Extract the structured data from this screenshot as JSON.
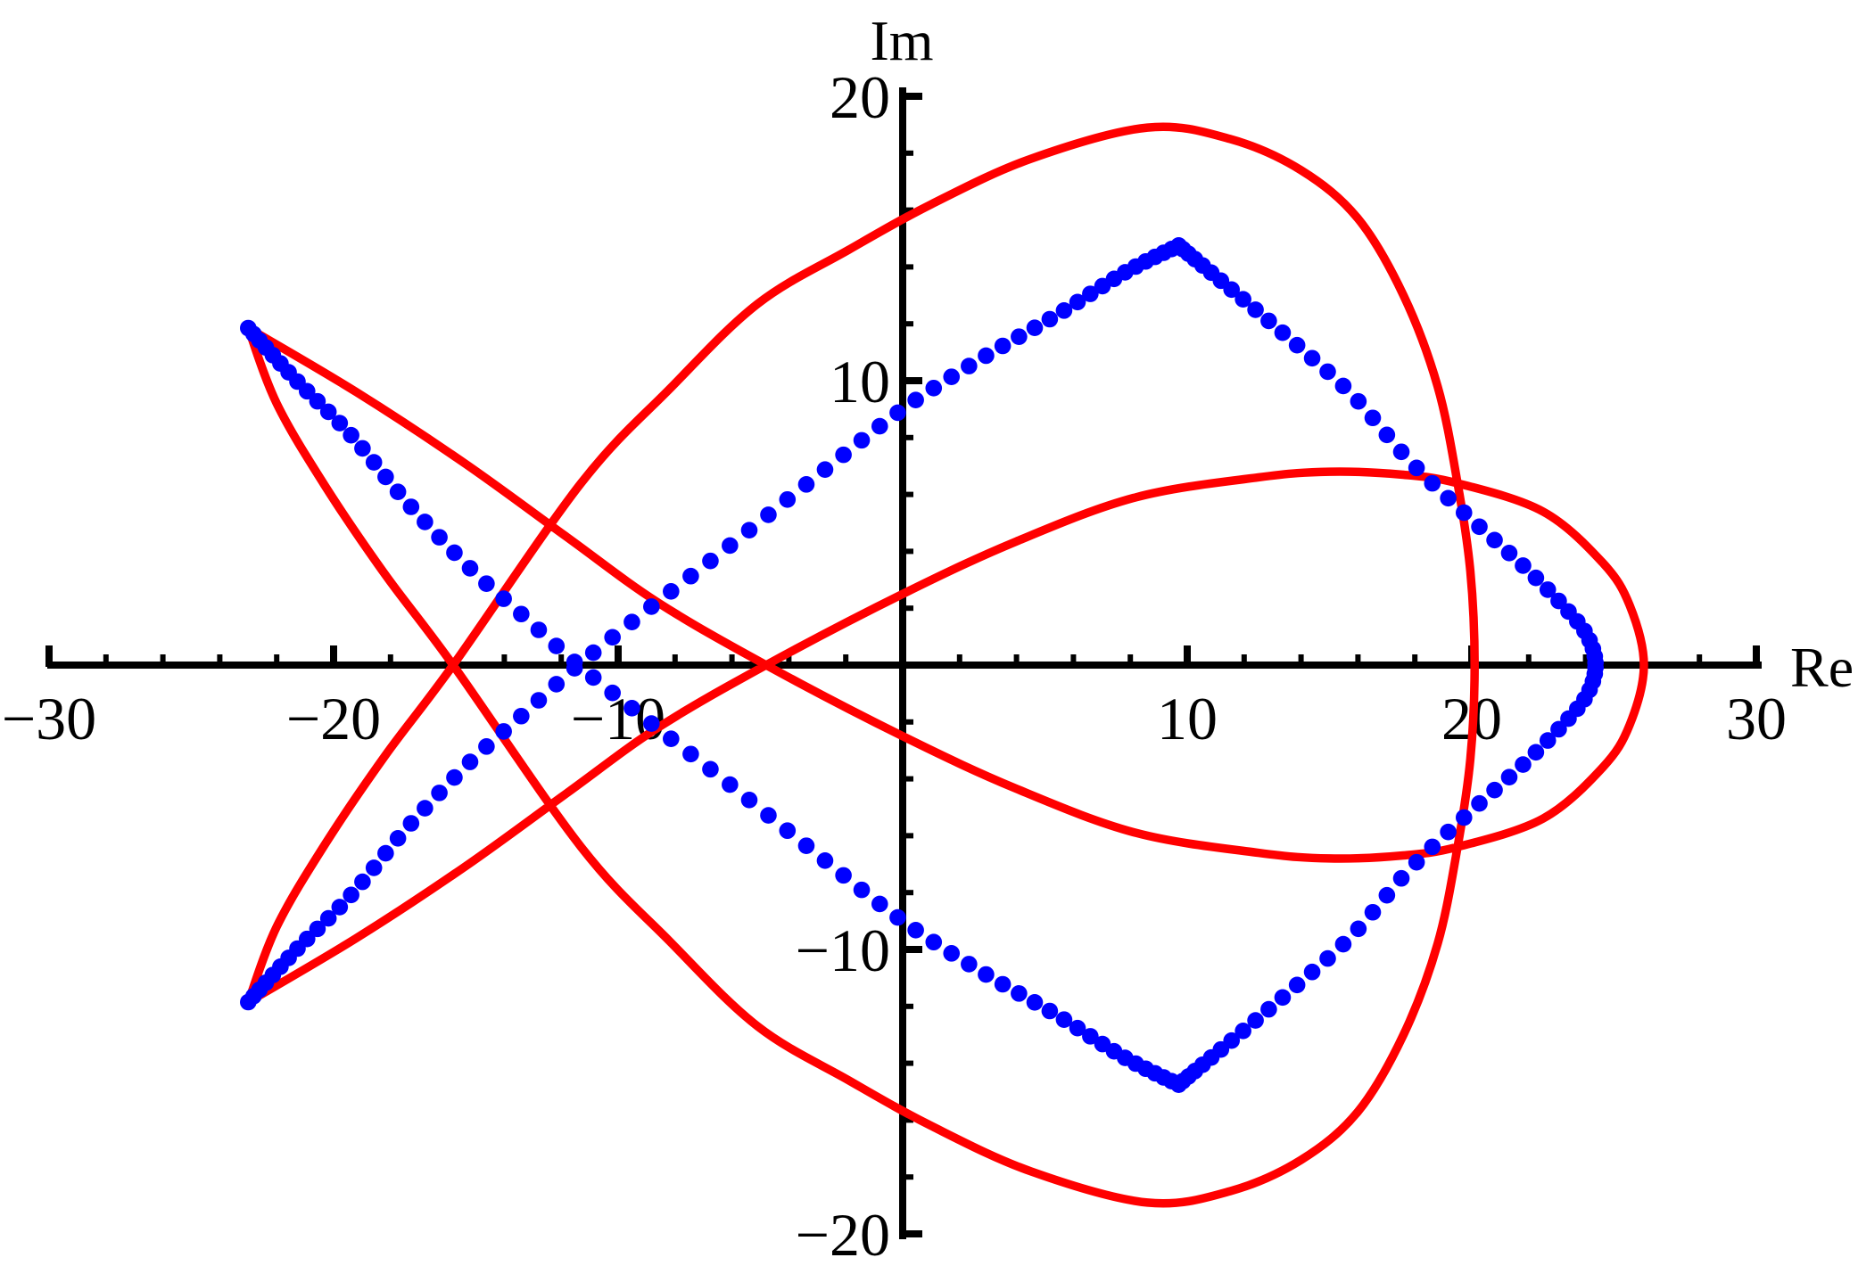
{
  "figure": {
    "background": "#ffffff",
    "description": "Complex-plane plot: red symbol curve (closed self-intersecting 'fish' curve) and blue eigenvalue dots forming arcs"
  },
  "chart_data": {
    "type": "scatter",
    "title": "",
    "xlabel": "Re",
    "ylabel": "Im",
    "xlim": [
      -30,
      30
    ],
    "ylim": [
      -20,
      20
    ],
    "grid": false,
    "legend": null,
    "axes": {
      "x": {
        "label": "Re",
        "range": [
          -30,
          30
        ],
        "minor_step": 2,
        "major_ticks": [
          {
            "value": -30,
            "label": "−30"
          },
          {
            "value": -20,
            "label": "−20"
          },
          {
            "value": -10,
            "label": "−10"
          },
          {
            "value": 10,
            "label": "10"
          },
          {
            "value": 20,
            "label": "20"
          },
          {
            "value": 30,
            "label": "30"
          }
        ]
      },
      "y": {
        "label": "Im",
        "range": [
          -20,
          20
        ],
        "minor_step": 2,
        "major_ticks": [
          {
            "value": 20,
            "label": "20"
          },
          {
            "value": 10,
            "label": "10"
          },
          {
            "value": -10,
            "label": "−10"
          },
          {
            "value": -20,
            "label": "−20"
          }
        ]
      }
    },
    "series": [
      {
        "name": "symbol-curve",
        "kind": "closed-curve",
        "color": "#ff0000",
        "stroke_width": 9.5,
        "sharp_indices": [
          16,
          54
        ],
        "points": [
          [
            26.05,
            0
          ],
          [
            25.55,
            2.1
          ],
          [
            24.6,
            3.6
          ],
          [
            22.5,
            5.4
          ],
          [
            19.47,
            6.4
          ],
          [
            17.5,
            6.7
          ],
          [
            15.0,
            6.8
          ],
          [
            12.5,
            6.6
          ],
          [
            8.2,
            5.9
          ],
          [
            4.0,
            4.35
          ],
          [
            0.0,
            2.5
          ],
          [
            -4.8,
            0
          ],
          [
            -8.6,
            -2.2
          ],
          [
            -11.8,
            -4.5
          ],
          [
            -15.4,
            -7.1
          ],
          [
            -19.2,
            -9.6
          ],
          [
            -23.0,
            -11.85
          ],
          [
            -22.0,
            -9.2
          ],
          [
            -20.3,
            -6.3
          ],
          [
            -18.2,
            -3.2
          ],
          [
            -15.8,
            0
          ],
          [
            -11.3,
            6.4
          ],
          [
            -8.2,
            9.7
          ],
          [
            -5.1,
            12.7
          ],
          [
            -1.9,
            14.6
          ],
          [
            1.0,
            16.2
          ],
          [
            4.5,
            17.8
          ],
          [
            8.6,
            18.9
          ],
          [
            11.5,
            18.5
          ],
          [
            14.0,
            17.4
          ],
          [
            16.0,
            15.7
          ],
          [
            17.6,
            13.0
          ],
          [
            18.8,
            9.8
          ],
          [
            19.5,
            6.4
          ],
          [
            19.95,
            3.3
          ],
          [
            20.1,
            0
          ],
          [
            19.95,
            -3.3
          ],
          [
            19.5,
            -6.4
          ],
          [
            18.8,
            -9.8
          ],
          [
            17.6,
            -13.0
          ],
          [
            16.0,
            -15.7
          ],
          [
            14.0,
            -17.4
          ],
          [
            11.5,
            -18.5
          ],
          [
            8.6,
            -18.9
          ],
          [
            4.5,
            -17.8
          ],
          [
            1.0,
            -16.2
          ],
          [
            -1.9,
            -14.6
          ],
          [
            -5.1,
            -12.7
          ],
          [
            -8.2,
            -9.7
          ],
          [
            -11.3,
            -6.4
          ],
          [
            -15.8,
            0
          ],
          [
            -18.2,
            3.2
          ],
          [
            -20.3,
            6.3
          ],
          [
            -22.0,
            9.2
          ],
          [
            -23.0,
            11.85
          ],
          [
            -19.2,
            9.6
          ],
          [
            -15.4,
            7.1
          ],
          [
            -11.8,
            4.5
          ],
          [
            -8.6,
            2.2
          ],
          [
            -4.8,
            0
          ],
          [
            0.0,
            -2.5
          ],
          [
            4.0,
            -4.35
          ],
          [
            8.2,
            -5.9
          ],
          [
            12.5,
            -6.6
          ],
          [
            15.0,
            -6.8
          ],
          [
            17.5,
            -6.7
          ],
          [
            19.47,
            -6.4
          ],
          [
            22.5,
            -5.4
          ],
          [
            24.6,
            -3.6
          ],
          [
            25.55,
            -2.1
          ]
        ]
      },
      {
        "name": "eigenvalue-arc-upper-left",
        "kind": "dotted-curve",
        "color": "#0000ff",
        "dot_radius": 9.3,
        "dot_count": 66,
        "density": "ends",
        "points": [
          [
            -23.0,
            11.85
          ],
          [
            -21.3,
            10.0
          ],
          [
            -19.4,
            8.1
          ],
          [
            -17.4,
            5.7
          ],
          [
            -15.2,
            3.4
          ],
          [
            -13.3,
            1.7
          ],
          [
            -11.4,
            0
          ],
          [
            -8.9,
            -2.0
          ],
          [
            -6.2,
            -4.1
          ],
          [
            -3.2,
            -6.5
          ],
          [
            0.0,
            -9.0
          ],
          [
            2.8,
            -10.8
          ],
          [
            5.4,
            -12.3
          ],
          [
            7.8,
            -13.8
          ],
          [
            9.7,
            -14.75
          ]
        ]
      },
      {
        "name": "eigenvalue-arc-lower-left",
        "kind": "dotted-curve",
        "color": "#0000ff",
        "dot_radius": 9.3,
        "dot_count": 66,
        "density": "ends",
        "points": [
          [
            -23.0,
            -11.85
          ],
          [
            -21.3,
            -10.0
          ],
          [
            -19.4,
            -8.1
          ],
          [
            -17.4,
            -5.7
          ],
          [
            -15.2,
            -3.4
          ],
          [
            -13.3,
            -1.7
          ],
          [
            -11.4,
            0
          ],
          [
            -8.9,
            2.0
          ],
          [
            -6.2,
            4.1
          ],
          [
            -3.2,
            6.5
          ],
          [
            0.0,
            9.0
          ],
          [
            2.8,
            10.8
          ],
          [
            5.4,
            12.3
          ],
          [
            7.8,
            13.8
          ],
          [
            9.7,
            14.75
          ]
        ]
      },
      {
        "name": "eigenvalue-arc-right-wedge",
        "kind": "dotted-curve",
        "color": "#0000ff",
        "dot_radius": 9.3,
        "dot_count": 76,
        "density": "ends-middle",
        "points": [
          [
            9.7,
            -14.75
          ],
          [
            11.8,
            -13.0
          ],
          [
            13.8,
            -11.3
          ],
          [
            15.8,
            -9.5
          ],
          [
            17.8,
            -7.2
          ],
          [
            19.9,
            -5.2
          ],
          [
            21.8,
            -3.5
          ],
          [
            23.2,
            -2.1
          ],
          [
            24.05,
            -1.05
          ],
          [
            24.35,
            0
          ],
          [
            24.05,
            1.05
          ],
          [
            23.2,
            2.1
          ],
          [
            21.8,
            3.5
          ],
          [
            19.9,
            5.2
          ],
          [
            17.8,
            7.2
          ],
          [
            15.8,
            9.5
          ],
          [
            13.8,
            11.3
          ],
          [
            11.8,
            13.0
          ],
          [
            9.7,
            14.75
          ]
        ]
      }
    ],
    "estimated_features": {
      "cusps": [
        [
          -23.0,
          11.85
        ],
        [
          -23.0,
          -11.85
        ]
      ],
      "red_axis_self_intersections": [
        [
          -15.8,
          0
        ],
        [
          -4.8,
          0
        ]
      ],
      "red_curve_crossings": [
        [
          19.5,
          6.4
        ],
        [
          19.5,
          -6.4
        ]
      ],
      "red_rightmost_point": [
        26.05,
        0
      ],
      "red_steep_axis_pass": [
        20.0,
        0
      ],
      "oval_peak": [
        8.6,
        18.9
      ],
      "lens_peak": [
        15.0,
        6.8
      ],
      "blue_arcs_crossing": [
        -11.4,
        0
      ],
      "blue_corners": [
        [
          9.7,
          14.75
        ],
        [
          9.7,
          -14.75
        ],
        [
          24.35,
          0
        ]
      ]
    },
    "style": {
      "curve_color": "#ff0000",
      "dot_color": "#0000ff",
      "axis_color": "#000000"
    }
  }
}
